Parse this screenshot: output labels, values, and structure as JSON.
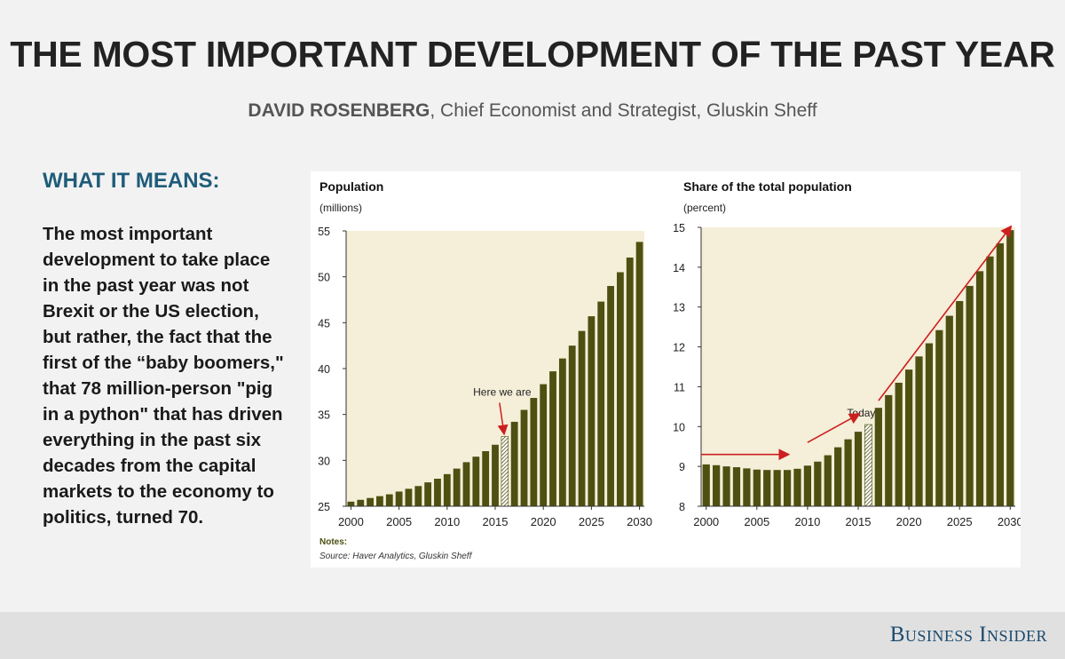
{
  "header": {
    "title": "THE MOST IMPORTANT DEVELOPMENT OF THE PAST YEAR",
    "author": "DAVID ROSENBERG",
    "author_role": ", Chief Economist and Strategist, Gluskin Sheff"
  },
  "left": {
    "heading": "WHAT IT MEANS:",
    "body": "The most important development to take place in the past year was not Brexit or the US election, but rather, the fact that the first of the “baby boomers,\" that 78 million-person \"pig in a python\" that has driven everything in the past six decades from the capital markets to the economy to politics, turned 70."
  },
  "notes": {
    "label": "Notes:",
    "source": "Source: Haver Analytics, Gluskin Sheff"
  },
  "footer": {
    "brand": "Business Insider"
  },
  "colors": {
    "bar": "#4d5011",
    "plot_bg": "#f5eed8",
    "arrow": "#cc1f1f",
    "title": "#222222",
    "heading": "#1f5c7a"
  },
  "chart_data": [
    {
      "type": "bar",
      "title": "Population",
      "ylabel": "(millions)",
      "xlabel": "",
      "ylim": [
        25,
        55
      ],
      "yticks": [
        25,
        30,
        35,
        40,
        45,
        50,
        55
      ],
      "x_tick_labels": [
        "2000",
        "2005",
        "2010",
        "2015",
        "2020",
        "2025",
        "2030"
      ],
      "categories": [
        2000,
        2001,
        2002,
        2003,
        2004,
        2005,
        2006,
        2007,
        2008,
        2009,
        2010,
        2011,
        2012,
        2013,
        2014,
        2015,
        2016,
        2017,
        2018,
        2019,
        2020,
        2021,
        2022,
        2023,
        2024,
        2025,
        2026,
        2027,
        2028,
        2029,
        2030
      ],
      "values": [
        25.5,
        25.7,
        25.9,
        26.1,
        26.3,
        26.6,
        26.9,
        27.2,
        27.6,
        28.0,
        28.5,
        29.1,
        29.8,
        30.4,
        31.0,
        31.7,
        32.6,
        34.2,
        35.5,
        36.8,
        38.3,
        39.7,
        41.1,
        42.5,
        44.1,
        45.7,
        47.3,
        49.0,
        50.5,
        52.1,
        53.8
      ],
      "highlight": {
        "category": 2016,
        "pattern": "hatched"
      },
      "annotation": {
        "text": "Here we are",
        "points_to": 2016
      },
      "grid": false,
      "legend": "none"
    },
    {
      "type": "bar",
      "title": "Share of the total population",
      "ylabel": "(percent)",
      "xlabel": "",
      "ylim": [
        8,
        15
      ],
      "yticks": [
        8,
        9,
        10,
        11,
        12,
        13,
        14,
        15
      ],
      "x_tick_labels": [
        "2000",
        "2005",
        "2010",
        "2015",
        "2020",
        "2025",
        "2030"
      ],
      "categories": [
        2000,
        2001,
        2002,
        2003,
        2004,
        2005,
        2006,
        2007,
        2008,
        2009,
        2010,
        2011,
        2012,
        2013,
        2014,
        2015,
        2016,
        2017,
        2018,
        2019,
        2020,
        2021,
        2022,
        2023,
        2024,
        2025,
        2026,
        2027,
        2028,
        2029,
        2030
      ],
      "values": [
        9.05,
        9.03,
        9.0,
        8.98,
        8.95,
        8.92,
        8.91,
        8.91,
        8.91,
        8.94,
        9.02,
        9.12,
        9.28,
        9.48,
        9.68,
        9.87,
        10.05,
        10.47,
        10.79,
        11.1,
        11.43,
        11.76,
        12.09,
        12.42,
        12.78,
        13.15,
        13.53,
        13.9,
        14.27,
        14.6,
        14.93
      ],
      "highlight": {
        "category": 2016,
        "pattern": "hatched"
      },
      "annotation": {
        "text": "Today",
        "points_to": 2016
      },
      "trend_arrows": [
        {
          "from": [
            2000,
            9.3
          ],
          "to": [
            2008,
            9.3
          ]
        },
        {
          "from": [
            2010,
            9.6
          ],
          "to": [
            2015,
            10.3
          ]
        },
        {
          "from": [
            2017,
            10.65
          ],
          "to": [
            2029.9,
            15.0
          ]
        }
      ],
      "grid": false,
      "legend": "none"
    }
  ]
}
